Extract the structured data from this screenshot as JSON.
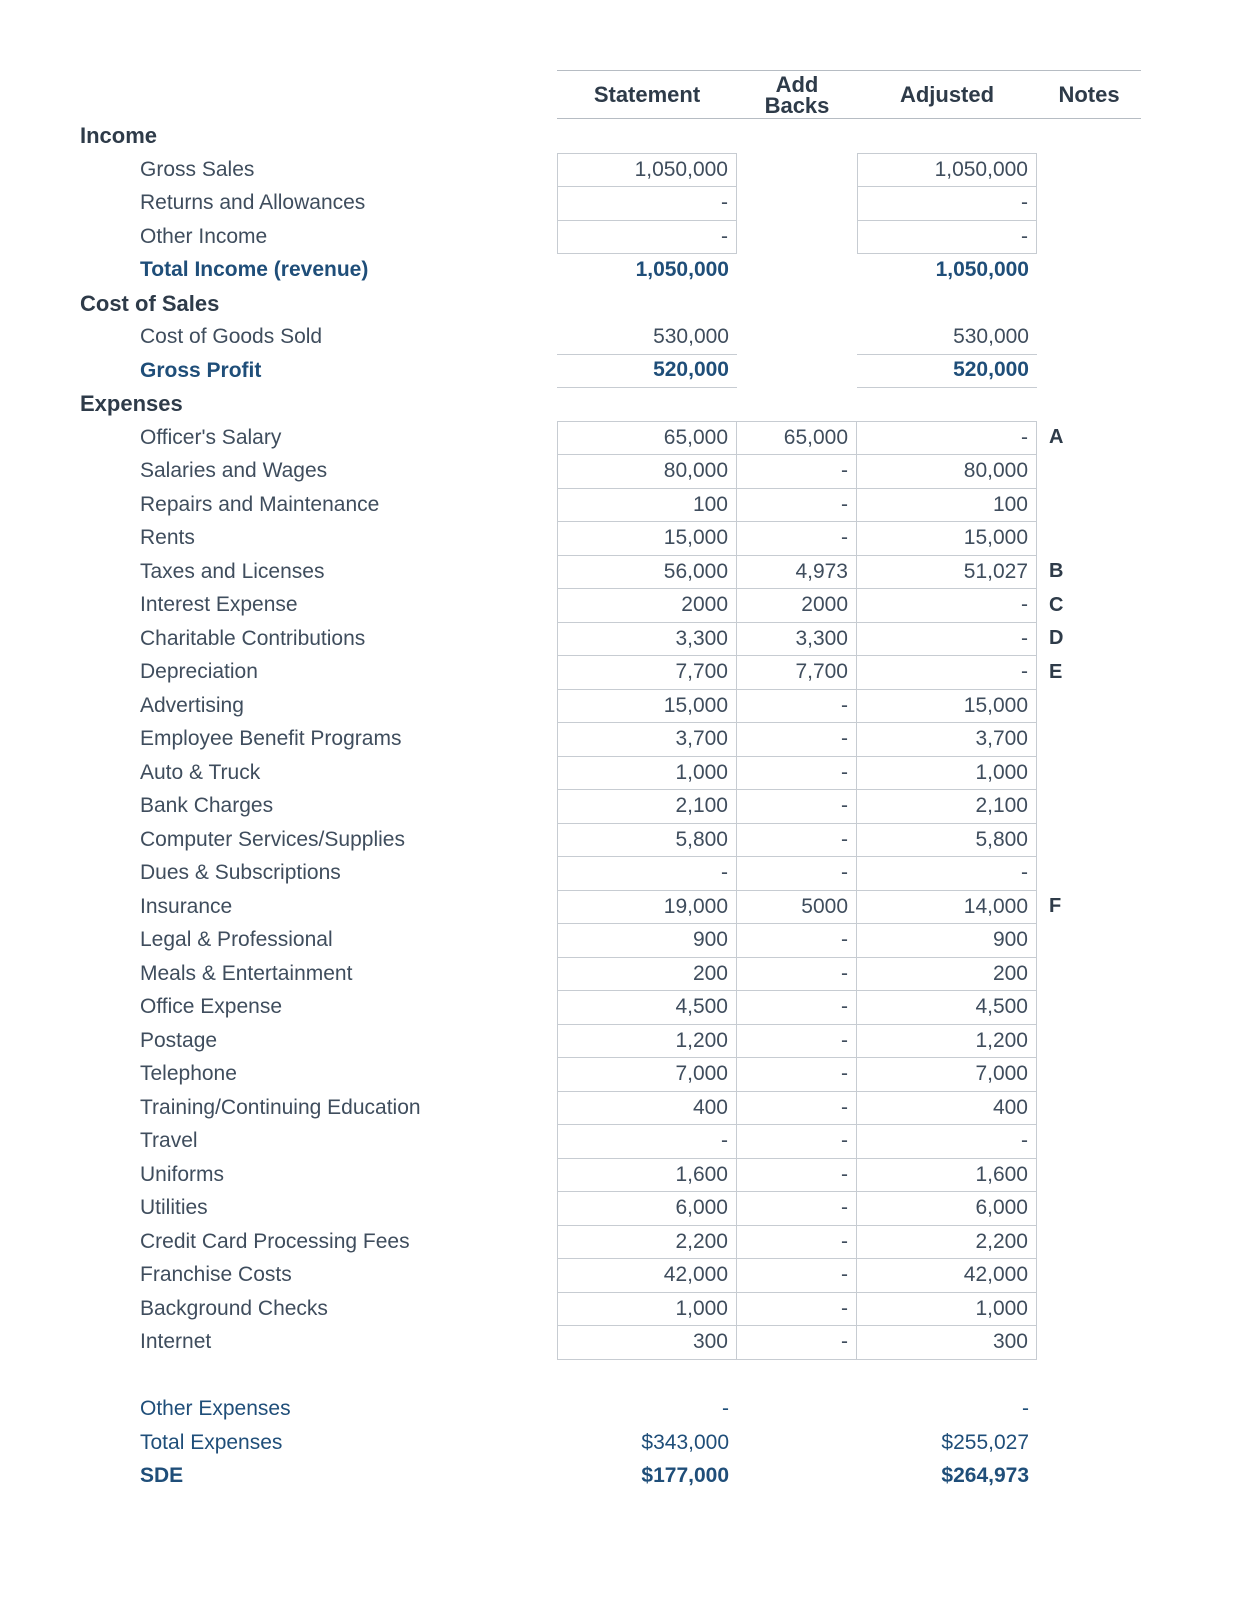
{
  "header": {
    "statement": "Statement",
    "add_backs_line1": "Add",
    "add_backs_line2": "Backs",
    "adjusted": "Adjusted",
    "notes": "Notes"
  },
  "colors": {
    "accent_blue": "#1f4e79",
    "text": "#3f4d5d",
    "cell_border": "#c7ccd2"
  },
  "rows": [
    {
      "type": "section",
      "label": "Income"
    },
    {
      "type": "item2",
      "label": "Gross Sales",
      "statement": "1,050,000",
      "addbacks": "",
      "adjusted": "1,050,000",
      "note": ""
    },
    {
      "type": "item2",
      "label": "Returns and Allowances",
      "statement": "-",
      "addbacks": "",
      "adjusted": "-",
      "note": ""
    },
    {
      "type": "item2",
      "label": "Other Income",
      "statement": "-",
      "addbacks": "",
      "adjusted": "-",
      "note": ""
    },
    {
      "type": "total",
      "label": "Total Income (revenue)",
      "statement": "1,050,000",
      "addbacks": "",
      "adjusted": "1,050,000",
      "note": ""
    },
    {
      "type": "section",
      "label": "Cost of Sales"
    },
    {
      "type": "cogs",
      "label": "Cost of Goods Sold",
      "statement": "530,000",
      "addbacks": "",
      "adjusted": "530,000",
      "note": ""
    },
    {
      "type": "gross",
      "label": "Gross Profit",
      "statement": "520,000",
      "addbacks": "",
      "adjusted": "520,000",
      "note": ""
    },
    {
      "type": "section",
      "label": "Expenses"
    },
    {
      "type": "item3",
      "label": "Officer's Salary",
      "statement": "65,000",
      "addbacks": "65,000",
      "adjusted": "-",
      "note": "A"
    },
    {
      "type": "item3",
      "label": "Salaries and Wages",
      "statement": "80,000",
      "addbacks": "-",
      "adjusted": "80,000",
      "note": ""
    },
    {
      "type": "item3",
      "label": "Repairs and Maintenance",
      "statement": "100",
      "addbacks": "-",
      "adjusted": "100",
      "note": ""
    },
    {
      "type": "item3",
      "label": "Rents",
      "statement": "15,000",
      "addbacks": "-",
      "adjusted": "15,000",
      "note": ""
    },
    {
      "type": "item3",
      "label": "Taxes and Licenses",
      "statement": "56,000",
      "addbacks": "4,973",
      "adjusted": "51,027",
      "note": "B"
    },
    {
      "type": "item3",
      "label": "Interest Expense",
      "statement": "2000",
      "addbacks": "2000",
      "adjusted": "-",
      "note": "C"
    },
    {
      "type": "item3",
      "label": "Charitable Contributions",
      "statement": "3,300",
      "addbacks": "3,300",
      "adjusted": "-",
      "note": "D"
    },
    {
      "type": "item3",
      "label": "Depreciation",
      "statement": "7,700",
      "addbacks": "7,700",
      "adjusted": "-",
      "note": "E"
    },
    {
      "type": "item3",
      "label": "Advertising",
      "statement": "15,000",
      "addbacks": "-",
      "adjusted": "15,000",
      "note": ""
    },
    {
      "type": "item3",
      "label": "Employee Benefit Programs",
      "statement": "3,700",
      "addbacks": "-",
      "adjusted": "3,700",
      "note": ""
    },
    {
      "type": "item3",
      "label": "Auto & Truck",
      "statement": "1,000",
      "addbacks": "-",
      "adjusted": "1,000",
      "note": ""
    },
    {
      "type": "item3",
      "label": "Bank Charges",
      "statement": "2,100",
      "addbacks": "-",
      "adjusted": "2,100",
      "note": ""
    },
    {
      "type": "item3",
      "label": "Computer Services/Supplies",
      "statement": "5,800",
      "addbacks": "-",
      "adjusted": "5,800",
      "note": ""
    },
    {
      "type": "item3",
      "label": "Dues & Subscriptions",
      "statement": "-",
      "addbacks": "-",
      "adjusted": "-",
      "note": ""
    },
    {
      "type": "item3",
      "label": "Insurance",
      "statement": "19,000",
      "addbacks": "5000",
      "adjusted": "14,000",
      "note": "F"
    },
    {
      "type": "item3",
      "label": "Legal & Professional",
      "statement": "900",
      "addbacks": "-",
      "adjusted": "900",
      "note": ""
    },
    {
      "type": "item3",
      "label": "Meals & Entertainment",
      "statement": "200",
      "addbacks": "-",
      "adjusted": "200",
      "note": ""
    },
    {
      "type": "item3",
      "label": "Office Expense",
      "statement": "4,500",
      "addbacks": "-",
      "adjusted": "4,500",
      "note": ""
    },
    {
      "type": "item3",
      "label": "Postage",
      "statement": "1,200",
      "addbacks": "-",
      "adjusted": "1,200",
      "note": ""
    },
    {
      "type": "item3",
      "label": "Telephone",
      "statement": "7,000",
      "addbacks": "-",
      "adjusted": "7,000",
      "note": ""
    },
    {
      "type": "item3",
      "label": "Training/Continuing Education",
      "statement": "400",
      "addbacks": "-",
      "adjusted": "400",
      "note": ""
    },
    {
      "type": "item3",
      "label": "Travel",
      "statement": "-",
      "addbacks": "-",
      "adjusted": "-",
      "note": ""
    },
    {
      "type": "item3",
      "label": "Uniforms",
      "statement": "1,600",
      "addbacks": "-",
      "adjusted": "1,600",
      "note": ""
    },
    {
      "type": "item3",
      "label": "Utilities",
      "statement": "6,000",
      "addbacks": "-",
      "adjusted": "6,000",
      "note": ""
    },
    {
      "type": "item3",
      "label": "Credit Card Processing Fees",
      "statement": "2,200",
      "addbacks": "-",
      "adjusted": "2,200",
      "note": ""
    },
    {
      "type": "item3",
      "label": "Franchise Costs",
      "statement": "42,000",
      "addbacks": "-",
      "adjusted": "42,000",
      "note": ""
    },
    {
      "type": "item3",
      "label": "Background Checks",
      "statement": "1,000",
      "addbacks": "-",
      "adjusted": "1,000",
      "note": ""
    },
    {
      "type": "item3",
      "label": "Internet",
      "statement": "300",
      "addbacks": "-",
      "adjusted": "300",
      "note": ""
    },
    {
      "type": "spacer"
    },
    {
      "type": "bluerow",
      "label": "Other Expenses",
      "statement": "-",
      "addbacks": "",
      "adjusted": "-",
      "note": ""
    },
    {
      "type": "bluerow",
      "label": "Total Expenses",
      "statement": "$343,000",
      "addbacks": "",
      "adjusted": "$255,027",
      "note": ""
    },
    {
      "type": "sde",
      "label": "SDE",
      "statement": "$177,000",
      "addbacks": "",
      "adjusted": "$264,973",
      "note": ""
    }
  ]
}
